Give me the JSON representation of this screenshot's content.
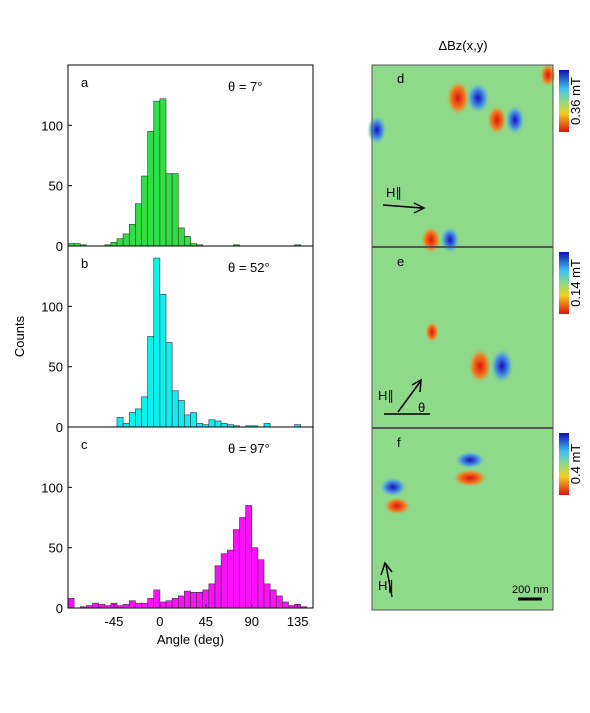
{
  "chart_data": [
    {
      "type": "histogram",
      "label": "a",
      "annotation": "θ = 7°",
      "color": "#33dd44",
      "bins": [
        -90,
        -84,
        -78,
        -72,
        -66,
        -60,
        -54,
        -48,
        -42,
        -36,
        -30,
        -24,
        -18,
        -12,
        -6,
        0,
        6,
        12,
        18,
        24,
        30,
        36,
        42,
        48,
        54,
        60,
        66,
        72,
        78,
        84,
        90,
        96,
        102,
        108,
        114,
        120,
        126,
        132,
        138,
        144,
        150
      ],
      "values": [
        2,
        2,
        1,
        0,
        0,
        0,
        1,
        3,
        6,
        10,
        18,
        35,
        58,
        95,
        120,
        122,
        60,
        60,
        15,
        8,
        2,
        1,
        0,
        0,
        0,
        0,
        0,
        1,
        0,
        0,
        0,
        0,
        0,
        0,
        0,
        0,
        0,
        1,
        0,
        0
      ],
      "xlim": [
        -90,
        150
      ],
      "ylim": [
        0,
        150
      ],
      "yticks": [
        0,
        50,
        100
      ]
    },
    {
      "type": "histogram",
      "label": "b",
      "annotation": "θ = 52°",
      "color": "#11eeee",
      "ylabel": "Counts",
      "bins": [
        -90,
        -84,
        -78,
        -72,
        -66,
        -60,
        -54,
        -48,
        -42,
        -36,
        -30,
        -24,
        -18,
        -12,
        -6,
        0,
        6,
        12,
        18,
        24,
        30,
        36,
        42,
        48,
        54,
        60,
        66,
        72,
        78,
        84,
        90,
        96,
        102,
        108,
        114,
        120,
        126,
        132,
        138,
        144,
        150
      ],
      "values": [
        0,
        0,
        0,
        0,
        0,
        0,
        0,
        0,
        8,
        3,
        12,
        15,
        25,
        75,
        140,
        110,
        70,
        30,
        22,
        10,
        12,
        3,
        2,
        6,
        5,
        3,
        2,
        1,
        0,
        1,
        1,
        0,
        3,
        0,
        0,
        0,
        0,
        2,
        0,
        0
      ],
      "xlim": [
        -90,
        150
      ],
      "ylim": [
        0,
        150
      ],
      "yticks": [
        0,
        50,
        100
      ]
    },
    {
      "type": "histogram",
      "label": "c",
      "annotation": "θ = 97°",
      "color": "#ff11ff",
      "xlabel": "Angle (deg)",
      "bins": [
        -90,
        -84,
        -78,
        -72,
        -66,
        -60,
        -54,
        -48,
        -42,
        -36,
        -30,
        -24,
        -18,
        -12,
        -6,
        0,
        6,
        12,
        18,
        24,
        30,
        36,
        42,
        48,
        54,
        60,
        66,
        72,
        78,
        84,
        90,
        96,
        102,
        108,
        114,
        120,
        126,
        132,
        138,
        144,
        150
      ],
      "values": [
        8,
        0,
        1,
        2,
        4,
        3,
        2,
        4,
        2,
        3,
        6,
        4,
        4,
        8,
        15,
        5,
        6,
        8,
        10,
        14,
        13,
        13,
        15,
        20,
        35,
        45,
        48,
        65,
        75,
        85,
        50,
        40,
        20,
        15,
        10,
        5,
        2,
        3,
        1,
        0
      ],
      "xlim": [
        -90,
        150
      ],
      "ylim": [
        0,
        150
      ],
      "yticks": [
        0,
        50,
        100
      ],
      "xticks": [
        -45,
        0,
        45,
        90,
        135
      ]
    }
  ],
  "maps": {
    "title": "ΔBz(x,y)",
    "field": "H∥",
    "theta": "θ",
    "scalebar": "200 nm",
    "panels": [
      {
        "label": "d",
        "scale": "0.36 mT"
      },
      {
        "label": "e",
        "scale": "0.14 mT"
      },
      {
        "label": "f",
        "scale": "0.4 mT"
      }
    ]
  }
}
